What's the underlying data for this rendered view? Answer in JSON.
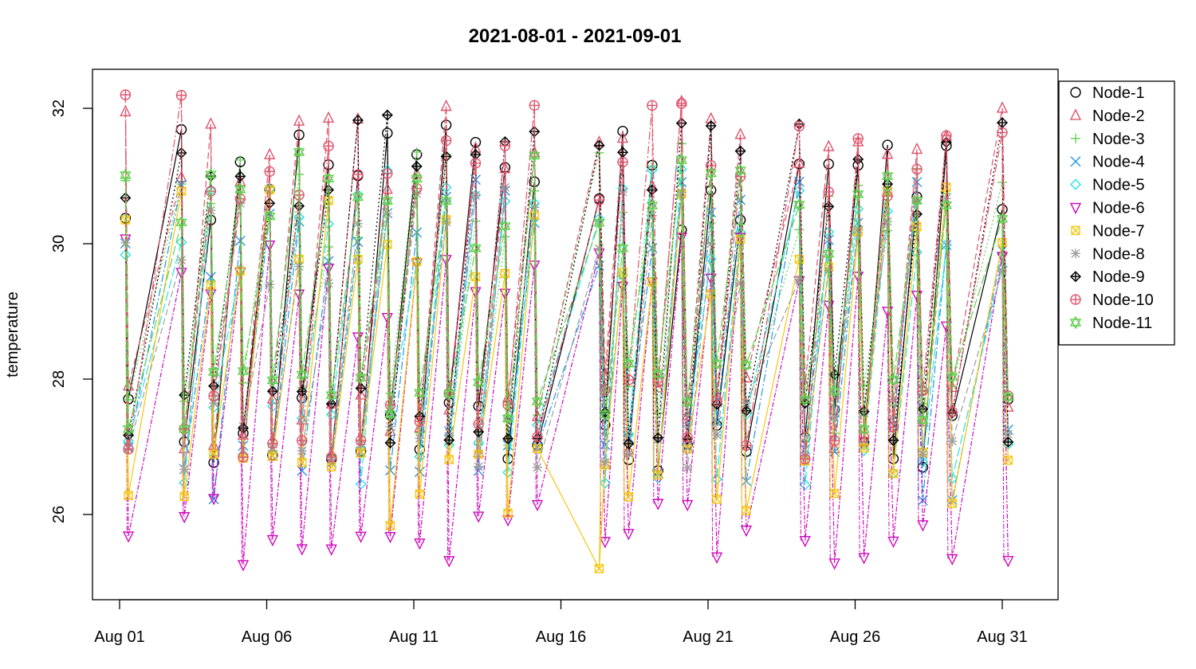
{
  "chart_data": {
    "type": "line",
    "title": "2021-08-01 - 2021-09-01",
    "xlabel": "",
    "ylabel": "temperature",
    "x_ticks": [
      "Aug 01",
      "Aug 06",
      "Aug 11",
      "Aug 16",
      "Aug 21",
      "Aug 26",
      "Aug 31"
    ],
    "x_tick_days": [
      1,
      6,
      11,
      16,
      21,
      26,
      31
    ],
    "y_ticks": [
      26,
      28,
      30,
      32
    ],
    "xlim": [
      "2021-07-31T16:00",
      "2021-09-01T17:00"
    ],
    "ylim": [
      24.8,
      32.5
    ],
    "grid": false,
    "legend_position": "top-right",
    "measurement_days": [
      1.2,
      1.3,
      3.1,
      3.2,
      4.1,
      4.2,
      5.1,
      5.2,
      6.1,
      6.2,
      7.1,
      7.2,
      8.1,
      8.2,
      9.1,
      9.2,
      10.1,
      10.2,
      11.1,
      11.2,
      12.1,
      12.2,
      13.1,
      13.2,
      14.1,
      14.2,
      15.1,
      15.2,
      17.3,
      17.5,
      18.1,
      18.3,
      19.1,
      19.3,
      20.1,
      20.3,
      21.1,
      21.3,
      22.1,
      22.3,
      24.1,
      24.3,
      25.1,
      25.3,
      26.1,
      26.3,
      27.1,
      27.3,
      28.1,
      28.3,
      29.1,
      29.3,
      31.0,
      31.2
    ],
    "series": [
      {
        "name": "Node-1",
        "color": "#000000",
        "marker": "circle",
        "dash": "",
        "min": 26.6,
        "max": 31.8,
        "offset": 0.0
      },
      {
        "name": "Node-2",
        "color": "#DF536B",
        "marker": "triangle-up",
        "dash": "8,4",
        "min": 26.9,
        "max": 32.1,
        "offset": 0.25
      },
      {
        "name": "Node-3",
        "color": "#61D04F",
        "marker": "plus",
        "dash": "2,3",
        "min": 26.8,
        "max": 31.5,
        "offset": 0.05
      },
      {
        "name": "Node-4",
        "color": "#2297E6",
        "marker": "cross",
        "dash": "10,3,2,3",
        "min": 26.2,
        "max": 31.0,
        "offset": -0.2
      },
      {
        "name": "Node-5",
        "color": "#28E2E5",
        "marker": "diamond",
        "dash": "12,4",
        "min": 26.4,
        "max": 31.2,
        "offset": -0.15
      },
      {
        "name": "Node-6",
        "color": "#CD0BBC",
        "marker": "triangle-down",
        "dash": "6,2,2,2",
        "min": 25.1,
        "max": 30.3,
        "offset": -0.6
      },
      {
        "name": "Node-7",
        "color": "#F5C710",
        "marker": "square-x",
        "dash": "",
        "min": 25.8,
        "max": 30.9,
        "offset": -0.3
      },
      {
        "name": "Node-8",
        "color": "#9E9E9E",
        "marker": "asterisk",
        "dash": "8,4",
        "min": 26.6,
        "max": 30.9,
        "offset": -0.1
      },
      {
        "name": "Node-9",
        "color": "#000000",
        "marker": "diamond-plus",
        "dash": "2,3",
        "min": 26.9,
        "max": 31.9,
        "offset": 0.1
      },
      {
        "name": "Node-10",
        "color": "#DF536B",
        "marker": "circle-plus",
        "dash": "10,3,2,3",
        "min": 26.8,
        "max": 32.2,
        "offset": 0.15
      },
      {
        "name": "Node-11",
        "color": "#61D04F",
        "marker": "star-of-david",
        "dash": "12,4",
        "min": 27.2,
        "max": 31.4,
        "offset": 0.05
      }
    ]
  }
}
